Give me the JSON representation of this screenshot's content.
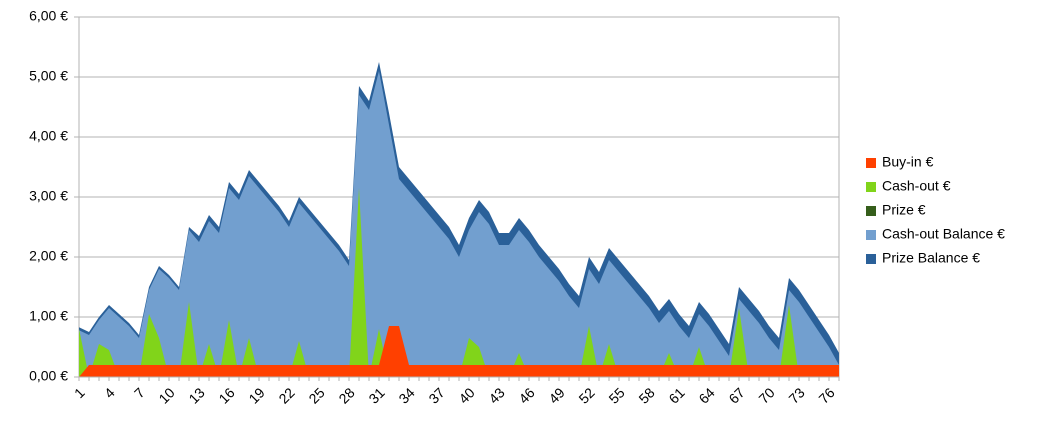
{
  "chart_data": {
    "type": "area",
    "categories": [
      "1",
      null,
      null,
      "4",
      null,
      null,
      "7",
      null,
      null,
      "10",
      null,
      null,
      "13",
      null,
      null,
      "16",
      null,
      null,
      "19",
      null,
      null,
      "22",
      null,
      null,
      "25",
      null,
      null,
      "28",
      null,
      null,
      "31",
      null,
      null,
      "34",
      null,
      null,
      "37",
      null,
      null,
      "40",
      null,
      null,
      "43",
      null,
      null,
      "46",
      null,
      null,
      "49",
      null,
      null,
      "52",
      null,
      null,
      "55",
      null,
      null,
      "58",
      null,
      null,
      "61",
      null,
      null,
      "64",
      null,
      null,
      "67",
      null,
      null,
      "70",
      null,
      null,
      "73",
      null,
      null,
      "76",
      null
    ],
    "series": [
      {
        "name": "Buy-in €",
        "color": "#ff4000",
        "values": [
          0,
          0.2,
          0.2,
          0.2,
          0.2,
          0.2,
          0.2,
          0.2,
          0.2,
          0.2,
          0.2,
          0.2,
          0.2,
          0.2,
          0.2,
          0.2,
          0.2,
          0.2,
          0.2,
          0.2,
          0.2,
          0.2,
          0.2,
          0.2,
          0.2,
          0.2,
          0.2,
          0.2,
          0.2,
          0.2,
          0.2,
          0.85,
          0.85,
          0.2,
          0.2,
          0.2,
          0.2,
          0.2,
          0.2,
          0.2,
          0.2,
          0.2,
          0.2,
          0.2,
          0.2,
          0.2,
          0.2,
          0.2,
          0.2,
          0.2,
          0.2,
          0.2,
          0.2,
          0.2,
          0.2,
          0.2,
          0.2,
          0.2,
          0.2,
          0.2,
          0.2,
          0.2,
          0.2,
          0.2,
          0.2,
          0.2,
          0.2,
          0.2,
          0.2,
          0.2,
          0.2,
          0.2,
          0.2,
          0.2,
          0.2,
          0.2,
          0.2
        ]
      },
      {
        "name": "Cash-out €",
        "color": "#81d41a",
        "values": [
          0.8,
          0,
          0.55,
          0.45,
          0,
          0,
          0,
          1.05,
          0.65,
          0,
          0,
          1.25,
          0,
          0.55,
          0,
          0.95,
          0,
          0.65,
          0,
          0,
          0,
          0,
          0.6,
          0,
          0,
          0,
          0,
          0,
          3.15,
          0,
          0.8,
          0,
          0,
          0,
          0,
          0,
          0,
          0,
          0,
          0.65,
          0.5,
          0,
          0,
          0,
          0.4,
          0,
          0,
          0,
          0,
          0,
          0,
          0.85,
          0,
          0.55,
          0,
          0,
          0,
          0,
          0,
          0.4,
          0,
          0,
          0.5,
          0,
          0,
          0,
          1.15,
          0,
          0,
          0,
          0,
          1.2,
          0,
          0,
          0,
          0,
          0
        ]
      },
      {
        "name": "Prize €",
        "color": "#355e1b",
        "values": [
          0,
          0,
          0,
          0,
          0,
          0,
          0,
          0,
          0,
          0,
          0,
          0,
          0,
          0,
          0,
          0,
          0,
          0,
          0,
          0,
          0,
          0,
          0,
          0,
          0,
          0,
          0,
          0,
          0,
          0,
          0,
          0,
          0,
          0,
          0,
          0,
          0,
          0,
          0,
          0,
          0,
          0,
          0,
          0,
          0,
          0,
          0,
          0,
          0,
          0,
          0,
          0,
          0,
          0,
          0,
          0,
          0,
          0,
          0,
          0,
          0,
          0,
          0,
          0,
          0,
          0,
          0,
          0,
          0,
          0,
          0,
          0,
          0,
          0,
          0,
          0,
          0
        ]
      },
      {
        "name": "Cash-out Balance €",
        "color": "#729fcf",
        "values": [
          0.78,
          0.7,
          0.95,
          1.15,
          1.0,
          0.85,
          0.65,
          1.45,
          1.8,
          1.65,
          1.45,
          2.45,
          2.25,
          2.6,
          2.4,
          3.15,
          2.95,
          3.35,
          3.15,
          2.95,
          2.75,
          2.5,
          2.9,
          2.7,
          2.5,
          2.3,
          2.1,
          1.85,
          4.7,
          4.45,
          5.1,
          4.2,
          3.3,
          3.1,
          2.9,
          2.7,
          2.5,
          2.3,
          2.0,
          2.45,
          2.75,
          2.55,
          2.2,
          2.2,
          2.45,
          2.25,
          2.0,
          1.8,
          1.6,
          1.35,
          1.15,
          1.8,
          1.55,
          1.95,
          1.75,
          1.55,
          1.35,
          1.15,
          0.9,
          1.1,
          0.85,
          0.65,
          1.05,
          0.85,
          0.6,
          0.35,
          1.3,
          1.1,
          0.9,
          0.65,
          0.45,
          1.45,
          1.25,
          1.0,
          0.75,
          0.5,
          0.2
        ]
      },
      {
        "name": "Prize Balance €",
        "color": "#2a6099",
        "values": [
          0.83,
          0.75,
          1.0,
          1.2,
          1.05,
          0.9,
          0.7,
          1.5,
          1.85,
          1.7,
          1.5,
          2.5,
          2.35,
          2.7,
          2.5,
          3.25,
          3.05,
          3.45,
          3.25,
          3.05,
          2.85,
          2.6,
          3.0,
          2.8,
          2.6,
          2.4,
          2.2,
          1.95,
          4.85,
          4.6,
          5.25,
          4.4,
          3.5,
          3.3,
          3.1,
          2.9,
          2.7,
          2.5,
          2.2,
          2.65,
          2.95,
          2.75,
          2.4,
          2.4,
          2.65,
          2.45,
          2.2,
          2.0,
          1.8,
          1.55,
          1.35,
          2.0,
          1.75,
          2.15,
          1.95,
          1.75,
          1.55,
          1.35,
          1.1,
          1.3,
          1.05,
          0.85,
          1.25,
          1.05,
          0.8,
          0.55,
          1.5,
          1.3,
          1.1,
          0.85,
          0.65,
          1.65,
          1.45,
          1.2,
          0.95,
          0.7,
          0.4
        ]
      }
    ],
    "ylim": [
      0,
      6
    ],
    "yticks": [
      {
        "value": 0,
        "label": "0,00 €"
      },
      {
        "value": 1,
        "label": "1,00 €"
      },
      {
        "value": 2,
        "label": "2,00 €"
      },
      {
        "value": 3,
        "label": "3,00 €"
      },
      {
        "value": 4,
        "label": "4,00 €"
      },
      {
        "value": 5,
        "label": "5,00 €"
      },
      {
        "value": 6,
        "label": "6,00 €"
      }
    ],
    "grid": true,
    "legend": "right"
  }
}
